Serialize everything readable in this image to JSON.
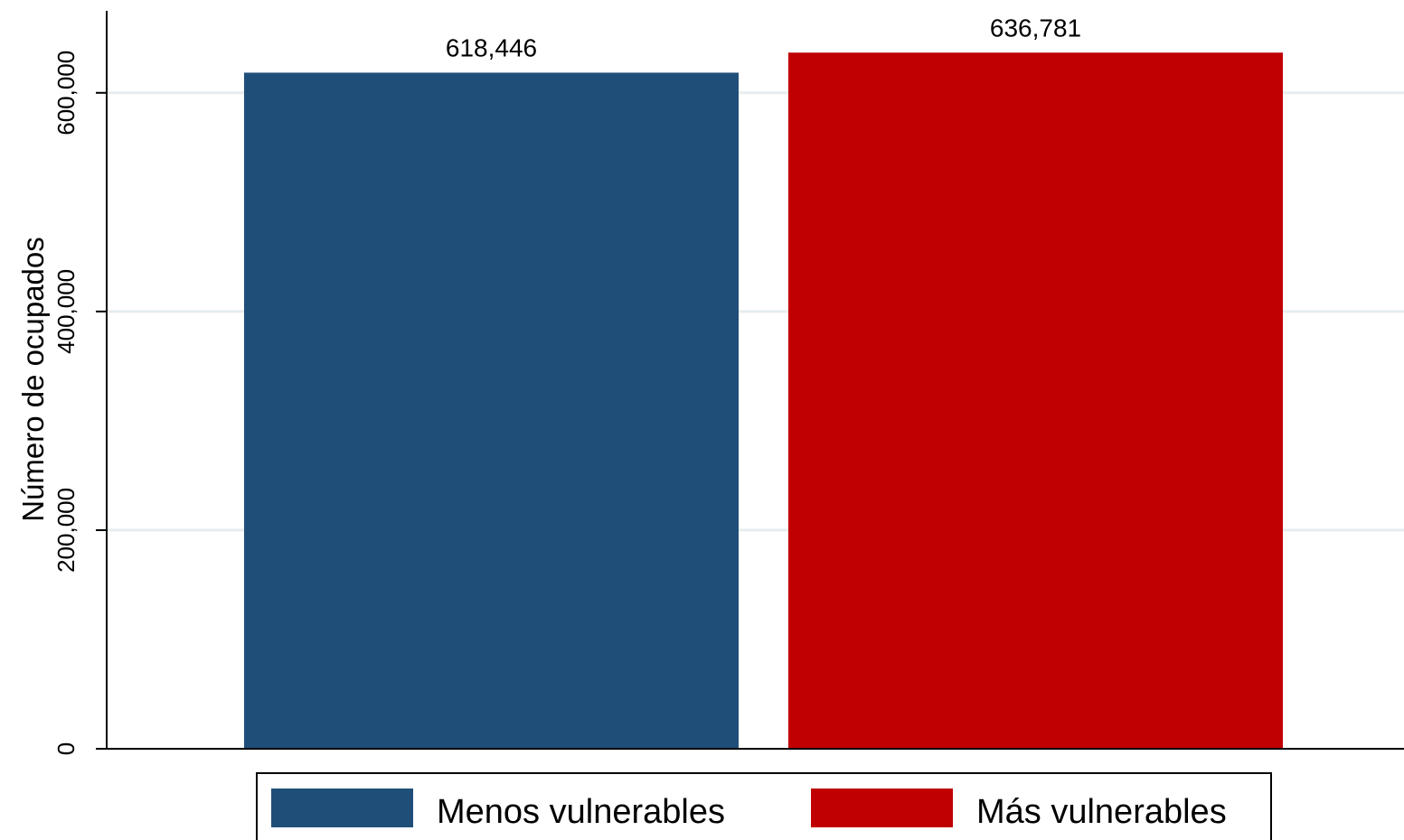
{
  "chart_data": {
    "type": "bar",
    "categories": [
      "Menos vulnerables",
      "Más vulnerables"
    ],
    "values": [
      618446,
      636781
    ],
    "data_labels": [
      "618,446",
      "636,781"
    ],
    "colors": [
      "#1f4e79",
      "#c00000"
    ],
    "title": "",
    "xlabel": "",
    "ylabel": "Número de ocupados",
    "ylim": [
      0,
      675000
    ],
    "yticks": [
      0,
      200000,
      400000,
      600000
    ],
    "ytick_labels": [
      "0",
      "200,000",
      "400,000",
      "600,000"
    ],
    "grid": true,
    "grid_color": "#e6ecef",
    "legend": {
      "position": "bottom",
      "entries": [
        "Menos vulnerables",
        "Más vulnerables"
      ]
    }
  }
}
